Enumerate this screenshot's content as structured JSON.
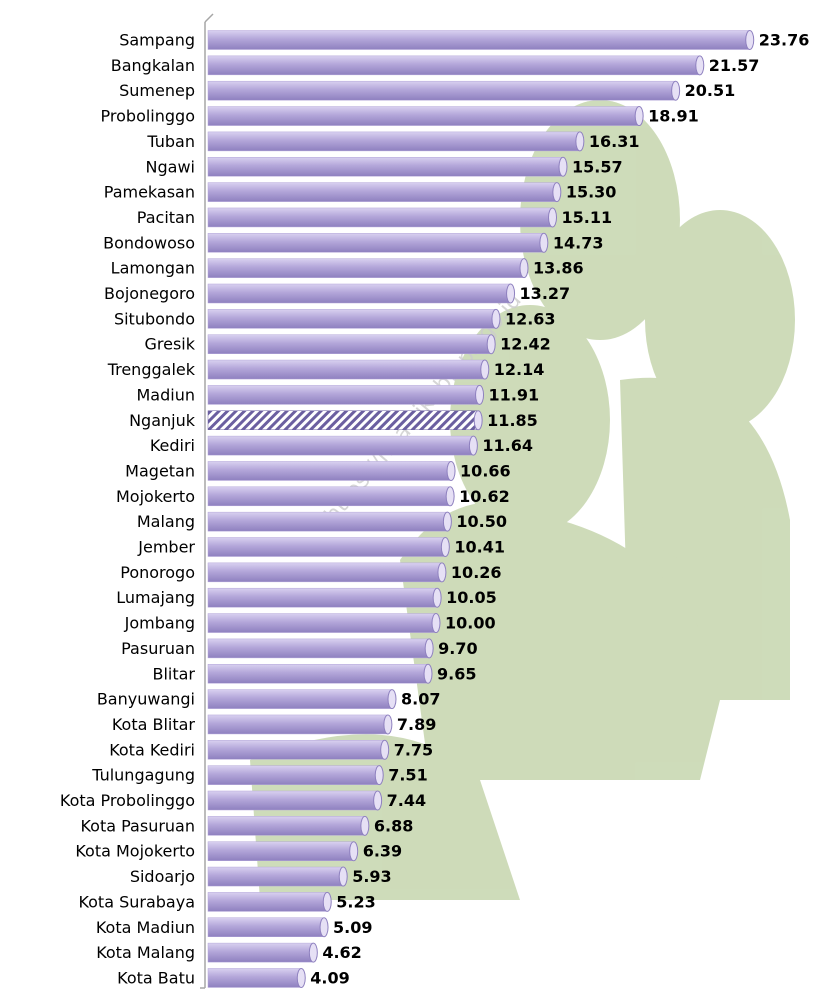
{
  "chart_data": {
    "type": "bar",
    "orientation": "horizontal",
    "categories": [
      "Sampang",
      "Bangkalan",
      "Sumenep",
      "Probolinggo",
      "Tuban",
      "Ngawi",
      "Pamekasan",
      "Pacitan",
      "Bondowoso",
      "Lamongan",
      "Bojonegoro",
      "Situbondo",
      "Gresik",
      "Trenggalek",
      "Madiun",
      "Nganjuk",
      "Kediri",
      "Magetan",
      "Mojokerto",
      "Malang",
      "Jember",
      "Ponorogo",
      "Lumajang",
      "Jombang",
      "Pasuruan",
      "Blitar",
      "Banyuwangi",
      "Kota Blitar",
      "Kota Kediri",
      "Tulungagung",
      "Kota Probolinggo",
      "Kota Pasuruan",
      "Kota Mojokerto",
      "Sidoarjo",
      "Kota Surabaya",
      "Kota Madiun",
      "Kota Malang",
      "Kota Batu"
    ],
    "values": [
      23.76,
      21.57,
      20.51,
      18.91,
      16.31,
      15.57,
      15.3,
      15.11,
      14.73,
      13.86,
      13.27,
      12.63,
      12.42,
      12.14,
      11.91,
      11.85,
      11.64,
      10.66,
      10.62,
      10.5,
      10.41,
      10.26,
      10.05,
      10,
      9.7,
      9.65,
      8.07,
      7.89,
      7.75,
      7.51,
      7.44,
      6.88,
      6.39,
      5.93,
      5.23,
      5.09,
      4.62,
      4.09
    ],
    "value_labels": [
      "23.76",
      "21.57",
      "20.51",
      "18.91",
      "16.31",
      "15.57",
      "15.30",
      "15.11",
      "14.73",
      "13.86",
      "13.27",
      "12.63",
      "12.42",
      "12.14",
      "11.91",
      "11.85",
      "11.64",
      "10.66",
      "10.62",
      "10.50",
      "10.41",
      "10.26",
      "10.05",
      "10.00",
      "9.70",
      "9.65",
      "8.07",
      "7.89",
      "7.75",
      "7.51",
      "7.44",
      "6.88",
      "6.39",
      "5.93",
      "5.23",
      "5.09",
      "4.62",
      "4.09"
    ],
    "color": "#b3a6d9",
    "highlight_index": 15,
    "watermark": "https://ngawikab.bps.go.id"
  }
}
